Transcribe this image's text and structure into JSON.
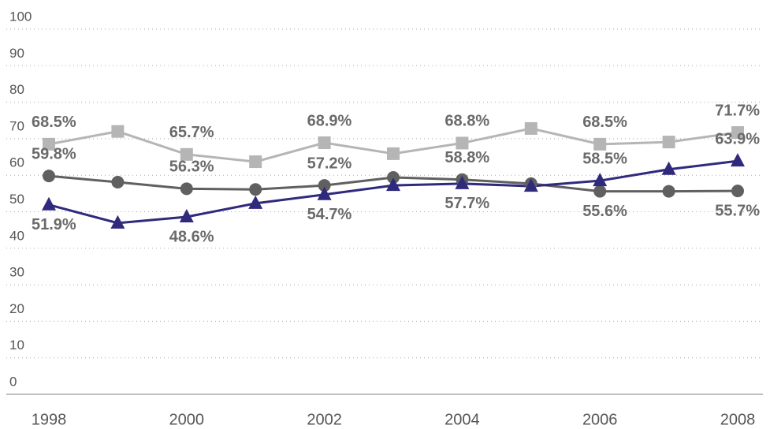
{
  "chart_data": {
    "type": "line",
    "categories": [
      "1998",
      null,
      "2000",
      null,
      "2002",
      null,
      "2004",
      null,
      "2006",
      null,
      "2008"
    ],
    "series": [
      {
        "color": "#b5b5b5",
        "marker": "square",
        "values": [
          68.5,
          72.0,
          65.7,
          63.7,
          68.9,
          65.9,
          68.8,
          72.8,
          68.5,
          69.1,
          71.7
        ],
        "value_labels": [
          "68.5%",
          null,
          "65.7%",
          null,
          "68.9%",
          null,
          "68.8%",
          null,
          "68.5%",
          null,
          "71.7%"
        ]
      },
      {
        "color": "#606060",
        "marker": "circle",
        "values": [
          59.8,
          58.1,
          56.3,
          56.1,
          57.2,
          59.4,
          58.8,
          57.7,
          55.6,
          55.6,
          55.7
        ],
        "value_labels": [
          "59.8%",
          null,
          "56.3%",
          null,
          "57.2%",
          null,
          "58.8%",
          null,
          "55.6%",
          null,
          "55.7%"
        ]
      },
      {
        "color": "#2f2a7c",
        "marker": "triangle",
        "values": [
          51.9,
          46.9,
          48.6,
          52.3,
          54.7,
          57.2,
          57.7,
          57.0,
          58.5,
          61.6,
          63.9
        ],
        "value_labels": [
          "51.9%",
          null,
          "48.6%",
          null,
          "54.7%",
          null,
          "57.7%",
          null,
          "58.5%",
          null,
          "63.9%"
        ]
      }
    ],
    "ylim": [
      0,
      100
    ],
    "yticks": [
      0,
      10,
      20,
      30,
      40,
      50,
      60,
      70,
      80,
      90,
      100
    ],
    "grid": true
  }
}
